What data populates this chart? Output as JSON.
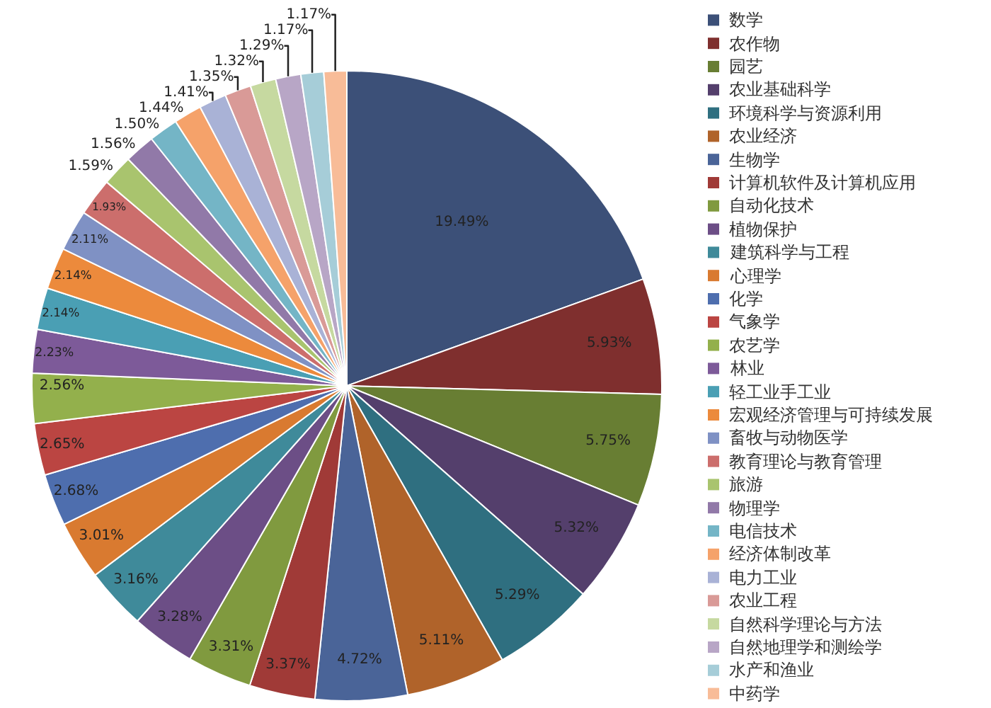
{
  "chart_data": {
    "type": "pie",
    "categories": [
      "数学",
      "农作物",
      "园艺",
      "农业基础科学",
      "环境科学与资源利用",
      "农业经济",
      "生物学",
      "计算机软件及计算机应用",
      "自动化技术",
      "植物保护",
      "建筑科学与工程",
      "心理学",
      "化学",
      "气象学",
      "农艺学",
      "林业",
      "轻工业手工业",
      "宏观经济管理与可持续发展",
      "畜牧与动物医学",
      "教育理论与教育管理",
      "旅游",
      "物理学",
      "电信技术",
      "经济体制改革",
      "电力工业",
      "农业工程",
      "自然科学理论与方法",
      "自然地理学和测绘学",
      "水产和渔业",
      "中药学"
    ],
    "values": [
      19.49,
      5.93,
      5.75,
      5.32,
      5.29,
      5.11,
      4.72,
      3.37,
      3.31,
      3.28,
      3.16,
      3.01,
      2.68,
      2.65,
      2.56,
      2.23,
      2.14,
      2.14,
      2.11,
      1.93,
      1.59,
      1.56,
      1.5,
      1.44,
      1.41,
      1.35,
      1.32,
      1.29,
      1.17,
      1.17
    ],
    "value_labels": [
      "19.49%",
      "5.93%",
      "5.75%",
      "5.32%",
      "5.29%",
      "5.11%",
      "4.72%",
      "3.37%",
      "3.31%",
      "3.28%",
      "3.16%",
      "3.01%",
      "2.68%",
      "2.65%",
      "2.56%",
      "2.23%",
      "2.14%",
      "2.14%",
      "2.11%",
      "1.93%",
      "1.59%",
      "1.56%",
      "1.50%",
      "1.44%",
      "1.41%",
      "1.35%",
      "1.32%",
      "1.29%",
      "1.17%",
      "1.17%"
    ],
    "colors": [
      "#3c5078",
      "#7f2f2e",
      "#687e33",
      "#543f6c",
      "#2f6f80",
      "#b0632a",
      "#4a6498",
      "#a03a37",
      "#809a3f",
      "#6c4e86",
      "#3f8a9a",
      "#d97a30",
      "#4e6eae",
      "#bb4542",
      "#93b04c",
      "#7d5a99",
      "#4a9fb4",
      "#ec8a3c",
      "#7f91c4",
      "#cc6e6c",
      "#a9c46e",
      "#9179a8",
      "#74b5c6",
      "#f5a26a",
      "#a9b2d6",
      "#d99a97",
      "#c6d9a0",
      "#b8a6c6",
      "#a6cdd8",
      "#f8bc98"
    ],
    "legend": "right"
  }
}
